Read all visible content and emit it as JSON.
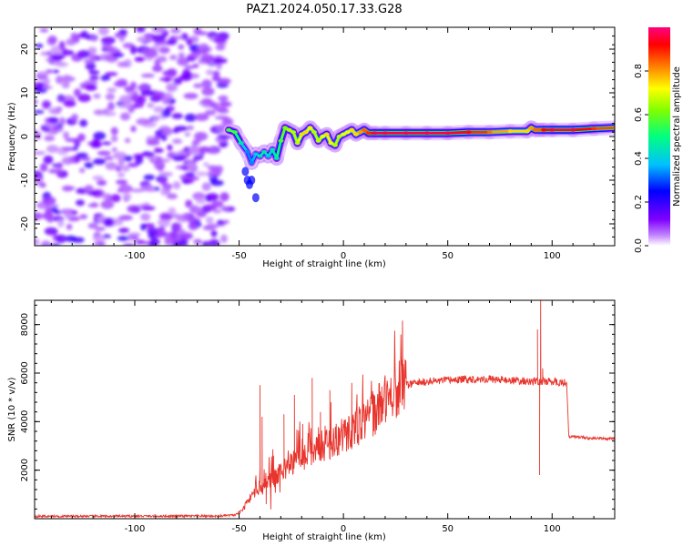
{
  "title": "PAZ1.2024.050.17.33.G28",
  "chart_data": [
    {
      "type": "heatmap",
      "name": "spectrogram",
      "xlabel": "Height of straight line (km)",
      "ylabel": "Frequency (Hz)",
      "xlim": [
        -148,
        130
      ],
      "ylim": [
        -25,
        25
      ],
      "xticks": [
        -100,
        -50,
        0,
        50,
        100
      ],
      "xtick_labels": [
        "-100",
        "-50",
        "0",
        "50",
        "100"
      ],
      "yticks": [
        -20,
        -10,
        0,
        10,
        20
      ],
      "ytick_labels": [
        "-20",
        "-10",
        "0",
        "10",
        "20"
      ],
      "colorbar": {
        "label": "Normalized spectral amplitude",
        "range": [
          0.0,
          1.0
        ],
        "ticks": [
          0.0,
          0.2,
          0.4,
          0.6,
          0.8
        ],
        "tick_labels": [
          "0.0",
          "0.2",
          "0.4",
          "0.6",
          "0.8"
        ],
        "colormap": [
          "#ffffff",
          "#8000ff",
          "#0000ff",
          "#00c0ff",
          "#00ff80",
          "#80ff00",
          "#ffff00",
          "#ff8000",
          "#ff0000",
          "#ff0080"
        ]
      },
      "noise_region": [
        -148,
        -55
      ],
      "ridge": {
        "x": [
          -55,
          -52,
          -49,
          -46,
          -44,
          -42,
          -40,
          -38,
          -36,
          -34,
          -32,
          -30,
          -28,
          -26,
          -24,
          -22,
          -20,
          -18,
          -16,
          -14,
          -12,
          -10,
          -8,
          -6,
          -4,
          -2,
          0,
          2,
          4,
          6,
          8,
          10,
          12,
          15,
          20,
          30,
          40,
          50,
          60,
          70,
          80,
          88,
          90,
          92,
          94,
          96,
          100,
          110,
          120,
          130
        ],
        "y": [
          1.5,
          1.0,
          -1.5,
          -3.5,
          -6.0,
          -4.0,
          -4.5,
          -3.5,
          -4.5,
          -3.0,
          -5.0,
          -1.0,
          2.0,
          1.5,
          1.0,
          -1.5,
          0.5,
          1.0,
          2.0,
          1.0,
          -1.0,
          0.0,
          0.5,
          -1.5,
          -2.0,
          0.0,
          0.5,
          1.0,
          1.5,
          0.5,
          1.0,
          1.5,
          0.8,
          0.8,
          0.8,
          0.8,
          0.8,
          0.8,
          1.0,
          1.0,
          1.2,
          1.2,
          2.0,
          1.5,
          1.5,
          1.5,
          1.5,
          1.5,
          1.8,
          2.0
        ],
        "amplitude": [
          0.5,
          0.5,
          0.4,
          0.3,
          0.3,
          0.35,
          0.4,
          0.4,
          0.35,
          0.4,
          0.4,
          0.5,
          0.55,
          0.6,
          0.6,
          0.6,
          0.7,
          0.7,
          0.65,
          0.6,
          0.6,
          0.65,
          0.7,
          0.65,
          0.6,
          0.6,
          0.65,
          0.65,
          0.7,
          0.7,
          0.75,
          0.8,
          0.85,
          0.95,
          0.95,
          0.95,
          0.95,
          0.95,
          0.9,
          0.8,
          0.7,
          0.7,
          0.75,
          0.8,
          0.8,
          0.9,
          0.95,
          0.95,
          0.85,
          0.8
        ]
      },
      "tail": {
        "x": [
          -47,
          -46,
          -45,
          -44,
          -42
        ],
        "y": [
          -8,
          -10,
          -11,
          -10,
          -14
        ]
      }
    },
    {
      "type": "line",
      "name": "snr",
      "xlabel": "Height of straight line (km)",
      "ylabel": "SNR (10 * v/v)",
      "xlim": [
        -148,
        130
      ],
      "ylim": [
        0,
        9000
      ],
      "xticks": [
        -100,
        -50,
        0,
        50,
        100
      ],
      "xtick_labels": [
        "-100",
        "-50",
        "0",
        "50",
        "100"
      ],
      "yticks": [
        2000,
        4000,
        6000,
        8000
      ],
      "ytick_labels": [
        "2000",
        "4000",
        "6000",
        "8000"
      ],
      "color": "#e8342c",
      "envelope": {
        "x": [
          -148,
          -60,
          -52,
          -50,
          -48,
          -46,
          -44,
          -42,
          -40,
          -38,
          -35,
          -30,
          -25,
          -20,
          -15,
          -10,
          -5,
          0,
          5,
          10,
          15,
          20,
          25,
          30,
          35,
          40,
          50,
          60,
          70,
          80,
          90,
          95,
          100,
          106,
          107,
          108,
          115,
          120,
          130
        ],
        "y": [
          100,
          110,
          150,
          250,
          400,
          700,
          1000,
          1200,
          1300,
          1400,
          1600,
          1900,
          2300,
          2500,
          2800,
          3000,
          3200,
          3400,
          3700,
          4000,
          4400,
          4900,
          5300,
          5500,
          5600,
          5650,
          5700,
          5750,
          5750,
          5700,
          5650,
          5650,
          5650,
          5600,
          5500,
          3400,
          3350,
          3300,
          3300
        ]
      },
      "spikes": [
        {
          "x": -40.0,
          "y": 5500
        },
        {
          "x": -39.0,
          "y": 4200
        },
        {
          "x": -37.0,
          "y": 600
        },
        {
          "x": -33.5,
          "y": 2600
        },
        {
          "x": -28.5,
          "y": 4300
        },
        {
          "x": -23.5,
          "y": 5100
        },
        {
          "x": -19.5,
          "y": 3900
        },
        {
          "x": -15.0,
          "y": 5800
        },
        {
          "x": -11.0,
          "y": 4400
        },
        {
          "x": -6.0,
          "y": 4800
        },
        {
          "x": -6.5,
          "y": 5300
        },
        {
          "x": 4.0,
          "y": 5600
        },
        {
          "x": 93.0,
          "y": 7800
        },
        {
          "x": 94.5,
          "y": 9000
        },
        {
          "x": 94.0,
          "y": 1800
        },
        {
          "x": 95.5,
          "y": 6200
        }
      ]
    }
  ]
}
